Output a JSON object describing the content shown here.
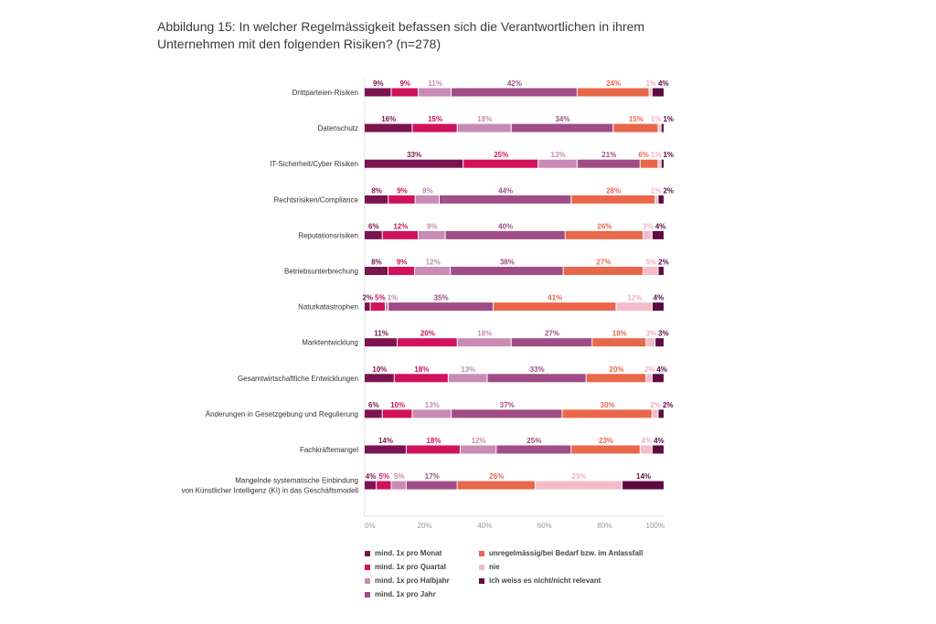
{
  "title": "Abbildung 15: In welcher Regelmässigkeit befassen sich die Verantwortlichen in ihrem Unternehmen mit den folgenden Risiken? (n=278)",
  "chart_data": {
    "type": "bar",
    "orientation": "horizontal",
    "stacked": true,
    "title": "Abbildung 15: In welcher Regelmässigkeit befassen sich die Verantwortlichen in ihrem Unternehmen mit den folgenden Risiken? (n=278)",
    "xlim": [
      0,
      100
    ],
    "xticks": [
      "0%",
      "20%",
      "40%",
      "60%",
      "80%",
      "100%"
    ],
    "grid": false,
    "legend_position": "bottom",
    "categories": [
      "Drittparteien-Risiken",
      "Datenschutz",
      "IT-Sicherheit/Cyber Risiken",
      "Rechtsrisiken/Compliance",
      "Reputationsrisiken",
      "Betriebsunterbrechung",
      "Naturkatastrophen",
      "Marktentwicklung",
      "Gesamtwirtschaftliche Entwicklungen",
      "Änderungen in Gesetzgebung und Regulierung",
      "Fachkräftemangel",
      "Mangelnde systematische Einbindung\nvon Künstlicher Intelligenz (KI) in das Geschäftsmodell"
    ],
    "series": [
      {
        "name": "mind. 1x pro Monat",
        "color": "#7b1450",
        "values": [
          9,
          16,
          33,
          8,
          6,
          8,
          2,
          11,
          10,
          6,
          14,
          4
        ]
      },
      {
        "name": "mind. 1x pro Quartal",
        "color": "#d1115c",
        "values": [
          9,
          15,
          25,
          9,
          12,
          9,
          5,
          20,
          18,
          10,
          18,
          5
        ]
      },
      {
        "name": "mind. 1x pro Halbjahr",
        "color": "#c98bb5",
        "values": [
          11,
          18,
          13,
          8,
          9,
          12,
          1,
          18,
          13,
          13,
          12,
          5
        ]
      },
      {
        "name": "mind. 1x pro Jahr",
        "color": "#a04c86",
        "values": [
          42,
          34,
          21,
          44,
          40,
          38,
          35,
          27,
          33,
          37,
          25,
          17
        ]
      },
      {
        "name": "unregelmässig/bei Bedarf bzw. im Anlassfall",
        "color": "#e9674a",
        "values": [
          24,
          15,
          6,
          28,
          26,
          27,
          41,
          18,
          20,
          30,
          23,
          26
        ]
      },
      {
        "name": "nie",
        "color": "#f4bccb",
        "values": [
          1,
          1,
          1,
          1,
          3,
          5,
          12,
          3,
          2,
          2,
          4,
          29
        ]
      },
      {
        "name": "ich weiss es nicht/nicht relevant",
        "color": "#5e0a42",
        "values": [
          4,
          1,
          1,
          2,
          4,
          2,
          4,
          3,
          4,
          2,
          4,
          14
        ]
      }
    ]
  }
}
